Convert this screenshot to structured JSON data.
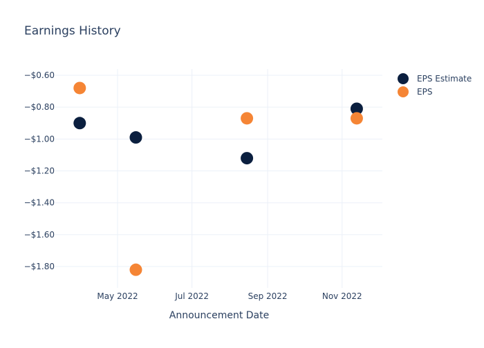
{
  "chart_data": {
    "type": "scatter",
    "title": "Earnings History",
    "xlabel": "Announcement Date",
    "ylabel": "",
    "xlim": [
      "2022-03-11",
      "2022-12-04"
    ],
    "ylim": [
      -1.934,
      -0.561
    ],
    "x_ticks": [
      {
        "date": "2022-05-01",
        "label": "May 2022"
      },
      {
        "date": "2022-07-01",
        "label": "Jul 2022"
      },
      {
        "date": "2022-09-01",
        "label": "Sep 2022"
      },
      {
        "date": "2022-11-01",
        "label": "Nov 2022"
      }
    ],
    "y_ticks": [
      {
        "value": -0.6,
        "label": "−$0.60"
      },
      {
        "value": -0.8,
        "label": "−$0.80"
      },
      {
        "value": -1.0,
        "label": "−$1.00"
      },
      {
        "value": -1.2,
        "label": "−$1.20"
      },
      {
        "value": -1.4,
        "label": "−$1.40"
      },
      {
        "value": -1.6,
        "label": "−$1.60"
      },
      {
        "value": -1.8,
        "label": "−$1.80"
      }
    ],
    "grid": true,
    "legend_position": "top-right",
    "series": [
      {
        "name": "EPS Estimate",
        "color": "#0b1f3f",
        "points": [
          {
            "x": "2022-03-31",
            "y": -0.9
          },
          {
            "x": "2022-05-16",
            "y": -0.99
          },
          {
            "x": "2022-08-15",
            "y": -1.12
          },
          {
            "x": "2022-11-13",
            "y": -0.81
          }
        ]
      },
      {
        "name": "EPS",
        "color": "#f58535",
        "points": [
          {
            "x": "2022-03-31",
            "y": -0.68
          },
          {
            "x": "2022-05-16",
            "y": -1.82
          },
          {
            "x": "2022-08-15",
            "y": -0.87
          },
          {
            "x": "2022-11-13",
            "y": -0.87
          }
        ]
      }
    ]
  }
}
